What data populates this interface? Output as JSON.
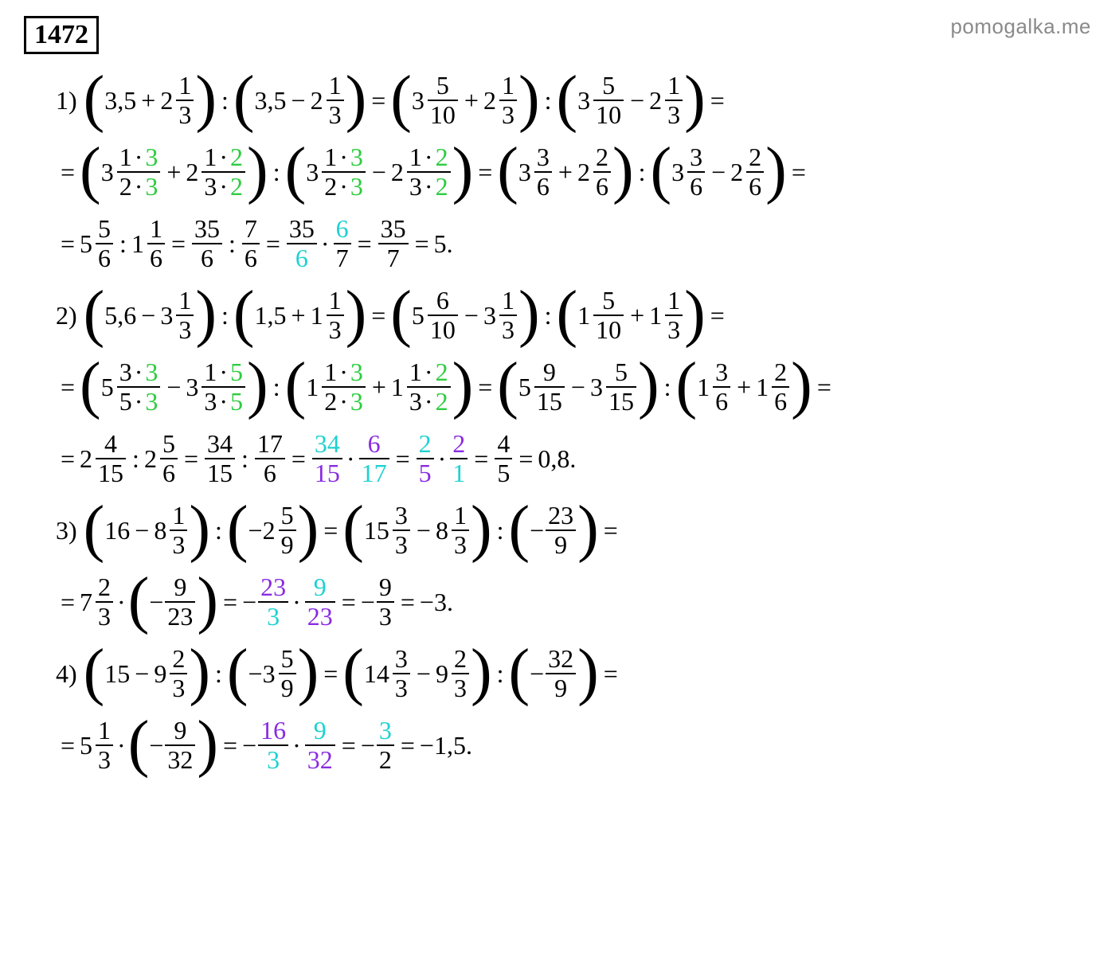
{
  "watermark": "pomogalka.me",
  "problem_number": "1472",
  "colors": {
    "text": "#000000",
    "green": "#2ecc40",
    "cyan": "#1fd1d1",
    "purple": "#8a2be2",
    "watermark": "#8a8a8a",
    "background": "#ffffff"
  },
  "typography": {
    "body_fontsize": 32,
    "problem_fontsize": 34,
    "paren_fontsize": 80,
    "font_family": "Times New Roman"
  },
  "labels": {
    "i1": "1)",
    "i2": "2)",
    "i3": "3)",
    "i4": "4)"
  },
  "n": {
    "d3c5": "3,5",
    "i2": "2",
    "i1": "1",
    "i3": "3",
    "i5": "5",
    "i10": "10",
    "i6": "6",
    "i7": "7",
    "i35": "35",
    "i4": "4",
    "i9": "9",
    "i15": "15",
    "i17": "17",
    "i34": "34",
    "i8": "8",
    "i16": "16",
    "i23": "23",
    "i32": "32",
    "d5c6": "5,6",
    "d1c5": "1,5",
    "d0c8": "0,8",
    "dm1c5": "−1,5",
    "p5": "5.",
    "pm3": "−3.",
    "m2_5_9": "−2",
    "m3_5_9": "−3",
    "minus": "−",
    "plus": "+",
    "eq": "=",
    "colon": ":",
    "dot": "·",
    "expr_1_3": "1 · 3",
    "expr_2_3": "2 · 3",
    "expr_1_2": "1 · 2",
    "expr_3_2": "3 · 2",
    "expr_3_3": "3 · 3",
    "expr_5_3": "5 · 3",
    "expr_1_5": "1 · 5",
    "expr_3_5": "3 · 5"
  }
}
